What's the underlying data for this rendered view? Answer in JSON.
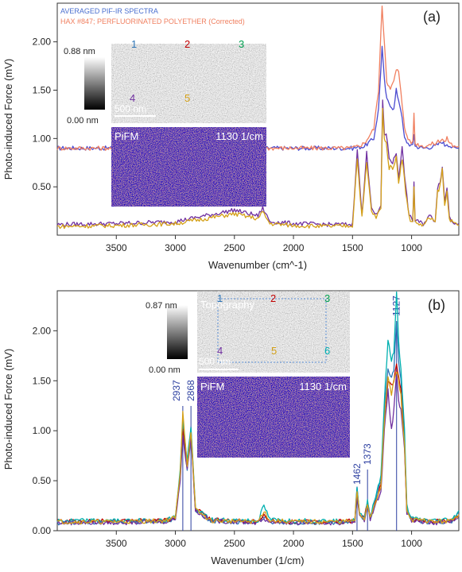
{
  "chart_data": [
    {
      "type": "line",
      "panel_label": "(a)",
      "xlabel": "Wavenumber (cm^-1)",
      "ylabel": "Photo-induced Force (mV)",
      "xlim": [
        4000,
        600
      ],
      "ylim": [
        0.0,
        2.4
      ],
      "x_reversed": true,
      "xticks": [
        3500,
        3000,
        2500,
        2000,
        1500,
        1000
      ],
      "xtick_labels": [
        "3500",
        "3000",
        "2500",
        "2000",
        "1500",
        "1000"
      ],
      "yticks": [
        0.5,
        1.0,
        1.5,
        2.0
      ],
      "ytick_labels": [
        "0.50",
        "1.00",
        "1.50",
        "2.00"
      ],
      "legend_position": "top-left",
      "legend": [
        {
          "text": "AVERAGED PIF-IR SPECTRA",
          "color": "#4a6fcf"
        },
        {
          "text": "HAX #847; PERFLUORINATED POLYETHER (Corrected)",
          "color": "#f07f5f"
        }
      ],
      "series": [
        {
          "name": "AVERAGED PIF-IR SPECTRA",
          "color": "#4a4ad0",
          "x": [
            4000,
            1500,
            1400,
            1320,
            1280,
            1250,
            1230,
            1210,
            1180,
            1150,
            1130,
            1110,
            1090,
            1060,
            1030,
            990,
            980,
            970,
            900,
            800,
            740,
            720,
            700,
            650,
            600
          ],
          "values": [
            0.9,
            0.9,
            0.92,
            1.0,
            1.3,
            1.95,
            1.6,
            1.4,
            1.35,
            1.3,
            1.5,
            1.4,
            1.3,
            1.0,
            0.95,
            0.92,
            1.05,
            0.92,
            0.9,
            0.92,
            0.97,
            0.93,
            0.95,
            0.9,
            0.9
          ]
        },
        {
          "name": "HAX #847; PERFLUORINATED POLYETHER (Corrected)",
          "color": "#f07f5f",
          "x": [
            4000,
            1500,
            1400,
            1320,
            1280,
            1250,
            1230,
            1210,
            1180,
            1150,
            1130,
            1110,
            1090,
            1060,
            1030,
            990,
            980,
            970,
            900,
            800,
            740,
            720,
            700,
            650,
            600
          ],
          "values": [
            0.9,
            0.9,
            0.95,
            1.1,
            1.5,
            2.38,
            2.0,
            1.6,
            1.5,
            1.6,
            1.7,
            1.7,
            1.5,
            1.1,
            1.0,
            0.95,
            1.25,
            0.95,
            0.92,
            0.95,
            1.0,
            0.96,
            1.0,
            0.92,
            0.92
          ]
        },
        {
          "name": "",
          "color": "#7030a0",
          "x": [
            4000,
            3500,
            3000,
            2500,
            2300,
            2260,
            2200,
            2000,
            1700,
            1500,
            1460,
            1420,
            1380,
            1340,
            1300,
            1260,
            1245,
            1230,
            1215,
            1190,
            1160,
            1130,
            1110,
            1080,
            1050,
            1020,
            990,
            980,
            970,
            900,
            850,
            800,
            780,
            760,
            740,
            720,
            700,
            680,
            650,
            600
          ],
          "values": [
            0.11,
            0.12,
            0.14,
            0.26,
            0.2,
            0.28,
            0.14,
            0.12,
            0.11,
            0.11,
            0.9,
            0.2,
            0.85,
            0.3,
            0.2,
            0.3,
            1.4,
            1.05,
            1.05,
            0.8,
            0.75,
            0.85,
            0.6,
            0.9,
            0.5,
            0.2,
            0.15,
            0.55,
            0.15,
            0.12,
            0.2,
            0.15,
            0.5,
            0.55,
            0.7,
            0.35,
            0.5,
            0.2,
            0.14,
            0.12
          ]
        },
        {
          "name": "",
          "color": "#d4a017",
          "x": [
            4000,
            3500,
            3000,
            2500,
            2300,
            2260,
            2200,
            2000,
            1700,
            1500,
            1460,
            1420,
            1380,
            1340,
            1300,
            1260,
            1245,
            1230,
            1215,
            1190,
            1160,
            1130,
            1110,
            1080,
            1050,
            1020,
            990,
            980,
            970,
            900,
            850,
            800,
            780,
            760,
            740,
            720,
            700,
            680,
            650,
            600
          ],
          "values": [
            0.09,
            0.1,
            0.12,
            0.22,
            0.17,
            0.24,
            0.12,
            0.1,
            0.09,
            0.1,
            0.8,
            0.18,
            0.75,
            0.25,
            0.18,
            0.28,
            1.3,
            1.0,
            0.95,
            0.7,
            0.7,
            0.8,
            0.55,
            0.8,
            0.45,
            0.18,
            0.13,
            0.5,
            0.13,
            0.1,
            0.18,
            0.13,
            0.45,
            0.5,
            0.68,
            0.3,
            0.45,
            0.18,
            0.12,
            0.1
          ]
        }
      ],
      "inset": {
        "scale_max": "0.88 nm",
        "scale_min": "0.00 nm",
        "scale_bar": "500 nm",
        "topo_label": "",
        "markers": [
          {
            "label": "1",
            "color": "#2e75b6"
          },
          {
            "label": "2",
            "color": "#c00000"
          },
          {
            "label": "3",
            "color": "#00a050"
          },
          {
            "label": "4",
            "color": "#7030a0"
          },
          {
            "label": "5",
            "color": "#d4a017"
          }
        ],
        "pifm_label": "PiFM",
        "pifm_wavenumber": "1130 1/cm"
      }
    },
    {
      "type": "line",
      "panel_label": "(b)",
      "xlabel": "Wavenumber (1/cm)",
      "ylabel": "Photo-induced Force (mV)",
      "xlim": [
        4000,
        600
      ],
      "ylim": [
        0.0,
        2.4
      ],
      "x_reversed": true,
      "xticks": [
        3500,
        3000,
        2500,
        2000,
        1500,
        1000
      ],
      "xtick_labels": [
        "3500",
        "3000",
        "2500",
        "2000",
        "1500",
        "1000"
      ],
      "yticks": [
        0.0,
        0.5,
        1.0,
        1.5,
        2.0
      ],
      "ytick_labels": [
        "0.00",
        "0.50",
        "1.00",
        "1.50",
        "2.00"
      ],
      "peak_annotations": [
        {
          "x": 2937,
          "label": "2937"
        },
        {
          "x": 2868,
          "label": "2868"
        },
        {
          "x": 1462,
          "label": "1462"
        },
        {
          "x": 1373,
          "label": "1373"
        },
        {
          "x": 1127,
          "label": "1127"
        }
      ],
      "series": [
        {
          "name": "",
          "color": "#2e75b6",
          "x": [
            4000,
            3500,
            3100,
            3000,
            2960,
            2937,
            2900,
            2868,
            2830,
            2700,
            2300,
            2250,
            2200,
            2000,
            1600,
            1480,
            1462,
            1440,
            1400,
            1373,
            1350,
            1260,
            1230,
            1200,
            1170,
            1150,
            1127,
            1110,
            1090,
            1060,
            1040,
            1000,
            800,
            650,
            600
          ],
          "values": [
            0.08,
            0.09,
            0.09,
            0.12,
            0.5,
            1.05,
            0.6,
            1.02,
            0.2,
            0.1,
            0.08,
            0.14,
            0.09,
            0.08,
            0.08,
            0.09,
            0.45,
            0.15,
            0.12,
            0.3,
            0.12,
            0.5,
            1.2,
            1.6,
            1.55,
            1.6,
            2.1,
            1.7,
            1.5,
            0.9,
            0.2,
            0.1,
            0.08,
            0.1,
            0.18
          ]
        },
        {
          "name": "",
          "color": "#c00000",
          "x": [
            4000,
            3500,
            3100,
            3000,
            2960,
            2937,
            2900,
            2868,
            2830,
            2700,
            2300,
            2250,
            2200,
            2000,
            1600,
            1480,
            1462,
            1440,
            1400,
            1373,
            1350,
            1260,
            1230,
            1200,
            1170,
            1150,
            1127,
            1110,
            1090,
            1060,
            1040,
            1000,
            800,
            650,
            600
          ],
          "values": [
            0.09,
            0.1,
            0.1,
            0.13,
            0.55,
            1.0,
            0.65,
            0.98,
            0.22,
            0.11,
            0.09,
            0.15,
            0.1,
            0.09,
            0.09,
            0.1,
            0.4,
            0.16,
            0.13,
            0.28,
            0.13,
            0.45,
            1.1,
            1.5,
            1.45,
            1.5,
            1.65,
            1.55,
            1.4,
            0.85,
            0.2,
            0.11,
            0.09,
            0.11,
            0.15
          ]
        },
        {
          "name": "",
          "color": "#00b0b0",
          "x": [
            4000,
            3500,
            3100,
            3000,
            2960,
            2937,
            2900,
            2868,
            2830,
            2700,
            2300,
            2250,
            2200,
            2000,
            1600,
            1480,
            1462,
            1440,
            1400,
            1373,
            1350,
            1260,
            1230,
            1200,
            1170,
            1150,
            1127,
            1110,
            1090,
            1060,
            1040,
            1000,
            800,
            650,
            600
          ],
          "values": [
            0.1,
            0.1,
            0.1,
            0.14,
            0.6,
            1.1,
            0.7,
            1.05,
            0.22,
            0.11,
            0.1,
            0.25,
            0.11,
            0.1,
            0.1,
            0.1,
            0.42,
            0.16,
            0.13,
            0.3,
            0.14,
            0.55,
            1.3,
            1.9,
            1.7,
            1.8,
            2.38,
            1.9,
            1.6,
            1.0,
            0.25,
            0.12,
            0.1,
            0.12,
            0.2
          ]
        },
        {
          "name": "",
          "color": "#7030a0",
          "x": [
            4000,
            3500,
            3100,
            3000,
            2960,
            2937,
            2900,
            2868,
            2830,
            2700,
            2300,
            2250,
            2200,
            2000,
            1600,
            1480,
            1462,
            1440,
            1400,
            1373,
            1350,
            1260,
            1230,
            1200,
            1170,
            1150,
            1127,
            1110,
            1090,
            1060,
            1040,
            1000,
            800,
            650,
            600
          ],
          "values": [
            0.08,
            0.08,
            0.09,
            0.12,
            0.5,
            0.95,
            0.6,
            0.95,
            0.2,
            0.1,
            0.08,
            0.12,
            0.09,
            0.08,
            0.08,
            0.09,
            0.38,
            0.14,
            0.11,
            0.26,
            0.12,
            0.4,
            1.0,
            1.4,
            1.0,
            1.2,
            1.6,
            1.3,
            1.2,
            0.8,
            0.18,
            0.1,
            0.08,
            0.1,
            0.14
          ]
        },
        {
          "name": "",
          "color": "#d4a017",
          "x": [
            4000,
            3500,
            3100,
            3000,
            2960,
            2937,
            2900,
            2868,
            2830,
            2700,
            2300,
            2250,
            2200,
            2000,
            1600,
            1480,
            1462,
            1440,
            1400,
            1373,
            1350,
            1260,
            1230,
            1200,
            1170,
            1150,
            1127,
            1110,
            1090,
            1060,
            1040,
            1000,
            800,
            650,
            600
          ],
          "values": [
            0.09,
            0.09,
            0.1,
            0.13,
            0.55,
            1.2,
            0.65,
            1.0,
            0.21,
            0.1,
            0.09,
            0.2,
            0.1,
            0.09,
            0.09,
            0.1,
            0.4,
            0.15,
            0.12,
            0.27,
            0.13,
            0.45,
            1.1,
            1.55,
            1.35,
            1.5,
            1.6,
            1.5,
            1.35,
            0.85,
            0.2,
            0.11,
            0.09,
            0.1,
            0.16
          ]
        }
      ],
      "inset": {
        "scale_max": "0.87 nm",
        "scale_min": "0.00 nm",
        "scale_bar": "500 nm",
        "topo_label": "Topography",
        "markers": [
          {
            "label": "1",
            "color": "#2e75b6"
          },
          {
            "label": "2",
            "color": "#c00000"
          },
          {
            "label": "3",
            "color": "#00a050"
          },
          {
            "label": "4",
            "color": "#7030a0"
          },
          {
            "label": "5",
            "color": "#d4a017"
          },
          {
            "label": "6",
            "color": "#00b0b0"
          }
        ],
        "pifm_label": "PiFM",
        "pifm_wavenumber": "1130 1/cm"
      }
    }
  ]
}
